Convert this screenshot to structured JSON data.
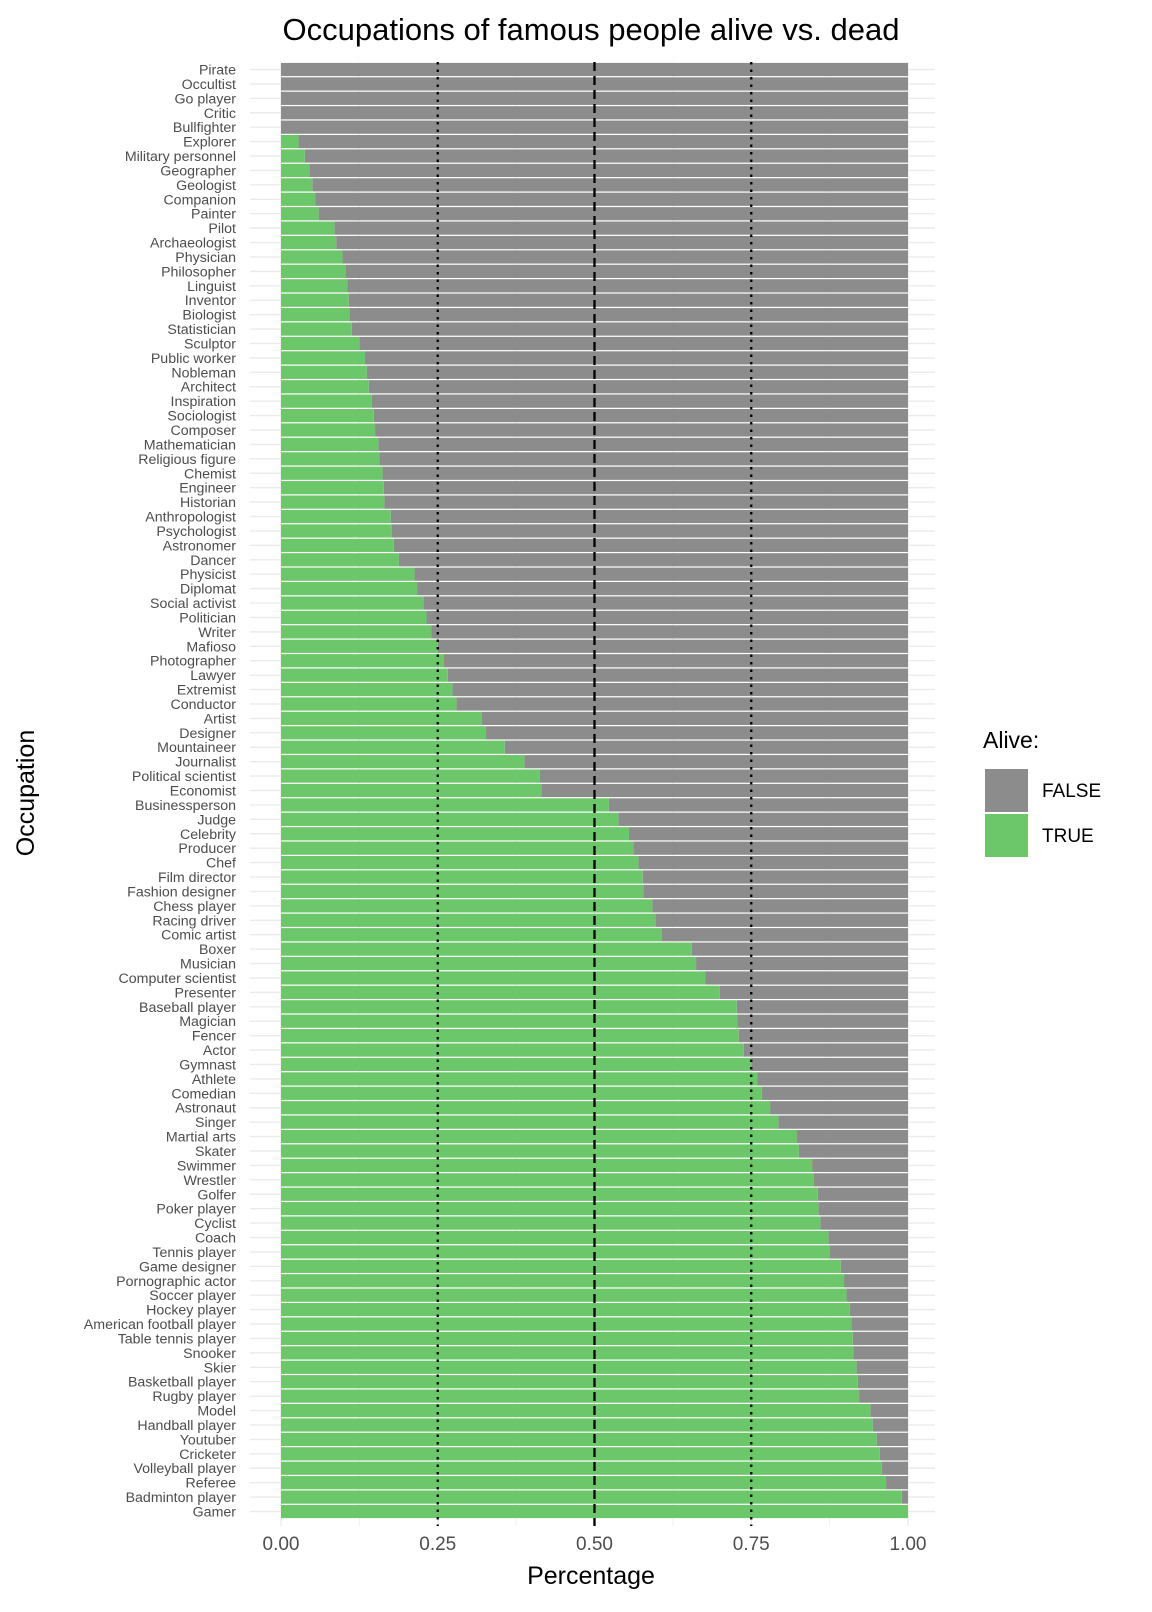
{
  "chart_data": {
    "type": "bar",
    "orientation": "horizontal",
    "stacked": true,
    "title": "Occupations of famous people alive vs. dead",
    "xlabel": "Percentage",
    "ylabel": "Occupation",
    "xlim": [
      0,
      1
    ],
    "x_ticks": [
      "0.00",
      "0.25",
      "0.50",
      "0.75",
      "1.00"
    ],
    "reference_lines": [
      {
        "x": 0.25,
        "style": "dotted"
      },
      {
        "x": 0.5,
        "style": "dashed"
      },
      {
        "x": 0.75,
        "style": "dotted"
      }
    ],
    "grid": true,
    "legend": {
      "title": "Alive:",
      "position": "right",
      "entries": [
        {
          "label": "FALSE",
          "color": "#8c8c8c"
        },
        {
          "label": "TRUE",
          "color": "#6cc76a"
        }
      ]
    },
    "categories": [
      "Pirate",
      "Occultist",
      "Go player",
      "Critic",
      "Bullfighter",
      "Explorer",
      "Military personnel",
      "Geographer",
      "Geologist",
      "Companion",
      "Painter",
      "Pilot",
      "Archaeologist",
      "Physician",
      "Philosopher",
      "Linguist",
      "Inventor",
      "Biologist",
      "Statistician",
      "Sculptor",
      "Public worker",
      "Nobleman",
      "Architect",
      "Inspiration",
      "Sociologist",
      "Composer",
      "Mathematician",
      "Religious figure",
      "Chemist",
      "Engineer",
      "Historian",
      "Anthropologist",
      "Psychologist",
      "Astronomer",
      "Dancer",
      "Physicist",
      "Diplomat",
      "Social activist",
      "Politician",
      "Writer",
      "Mafioso",
      "Photographer",
      "Lawyer",
      "Extremist",
      "Conductor",
      "Artist",
      "Designer",
      "Mountaineer",
      "Journalist",
      "Political scientist",
      "Economist",
      "Businessperson",
      "Judge",
      "Celebrity",
      "Producer",
      "Chef",
      "Film director",
      "Fashion designer",
      "Chess player",
      "Racing driver",
      "Comic artist",
      "Boxer",
      "Musician",
      "Computer scientist",
      "Presenter",
      "Baseball player",
      "Magician",
      "Fencer",
      "Actor",
      "Gymnast",
      "Athlete",
      "Comedian",
      "Astronaut",
      "Singer",
      "Martial arts",
      "Skater",
      "Swimmer",
      "Wrestler",
      "Golfer",
      "Poker player",
      "Cyclist",
      "Coach",
      "Tennis player",
      "Game designer",
      "Pornographic actor",
      "Soccer player",
      "Hockey player",
      "American football player",
      "Table tennis player",
      "Snooker",
      "Skier",
      "Basketball player",
      "Rugby player",
      "Model",
      "Handball player",
      "Youtuber",
      "Cricketer",
      "Volleyball player",
      "Referee",
      "Badminton player",
      "Gamer"
    ],
    "series": [
      {
        "name": "TRUE",
        "values": [
          0,
          0,
          0,
          0,
          0,
          0.028,
          0.038,
          0.045,
          0.05,
          0.055,
          0.06,
          0.085,
          0.088,
          0.098,
          0.103,
          0.106,
          0.108,
          0.109,
          0.113,
          0.125,
          0.134,
          0.137,
          0.14,
          0.145,
          0.148,
          0.15,
          0.155,
          0.157,
          0.162,
          0.164,
          0.165,
          0.175,
          0.177,
          0.18,
          0.188,
          0.213,
          0.217,
          0.227,
          0.232,
          0.24,
          0.25,
          0.26,
          0.266,
          0.273,
          0.28,
          0.32,
          0.327,
          0.357,
          0.388,
          0.413,
          0.415,
          0.523,
          0.538,
          0.555,
          0.562,
          0.57,
          0.577,
          0.578,
          0.592,
          0.597,
          0.607,
          0.655,
          0.662,
          0.677,
          0.7,
          0.727,
          0.728,
          0.73,
          0.738,
          0.75,
          0.76,
          0.767,
          0.78,
          0.793,
          0.823,
          0.826,
          0.847,
          0.85,
          0.856,
          0.857,
          0.86,
          0.873,
          0.875,
          0.893,
          0.898,
          0.902,
          0.907,
          0.91,
          0.912,
          0.913,
          0.918,
          0.92,
          0.922,
          0.94,
          0.944,
          0.95,
          0.955,
          0.958,
          0.965,
          0.99,
          1.0
        ]
      },
      {
        "name": "FALSE",
        "values": [
          1,
          1,
          1,
          1,
          1,
          0.972,
          0.962,
          0.955,
          0.95,
          0.945,
          0.94,
          0.915,
          0.912,
          0.902,
          0.897,
          0.894,
          0.892,
          0.891,
          0.887,
          0.875,
          0.866,
          0.863,
          0.86,
          0.855,
          0.852,
          0.85,
          0.845,
          0.843,
          0.838,
          0.836,
          0.835,
          0.825,
          0.823,
          0.82,
          0.812,
          0.787,
          0.783,
          0.773,
          0.768,
          0.76,
          0.75,
          0.74,
          0.734,
          0.727,
          0.72,
          0.68,
          0.673,
          0.643,
          0.612,
          0.587,
          0.585,
          0.477,
          0.462,
          0.445,
          0.438,
          0.43,
          0.423,
          0.422,
          0.408,
          0.403,
          0.393,
          0.345,
          0.338,
          0.323,
          0.3,
          0.273,
          0.272,
          0.27,
          0.262,
          0.25,
          0.24,
          0.233,
          0.22,
          0.207,
          0.177,
          0.174,
          0.153,
          0.15,
          0.144,
          0.143,
          0.14,
          0.127,
          0.125,
          0.107,
          0.102,
          0.098,
          0.093,
          0.09,
          0.088,
          0.087,
          0.082,
          0.08,
          0.078,
          0.06,
          0.056,
          0.05,
          0.045,
          0.042,
          0.035,
          0.01,
          0
        ]
      }
    ]
  }
}
